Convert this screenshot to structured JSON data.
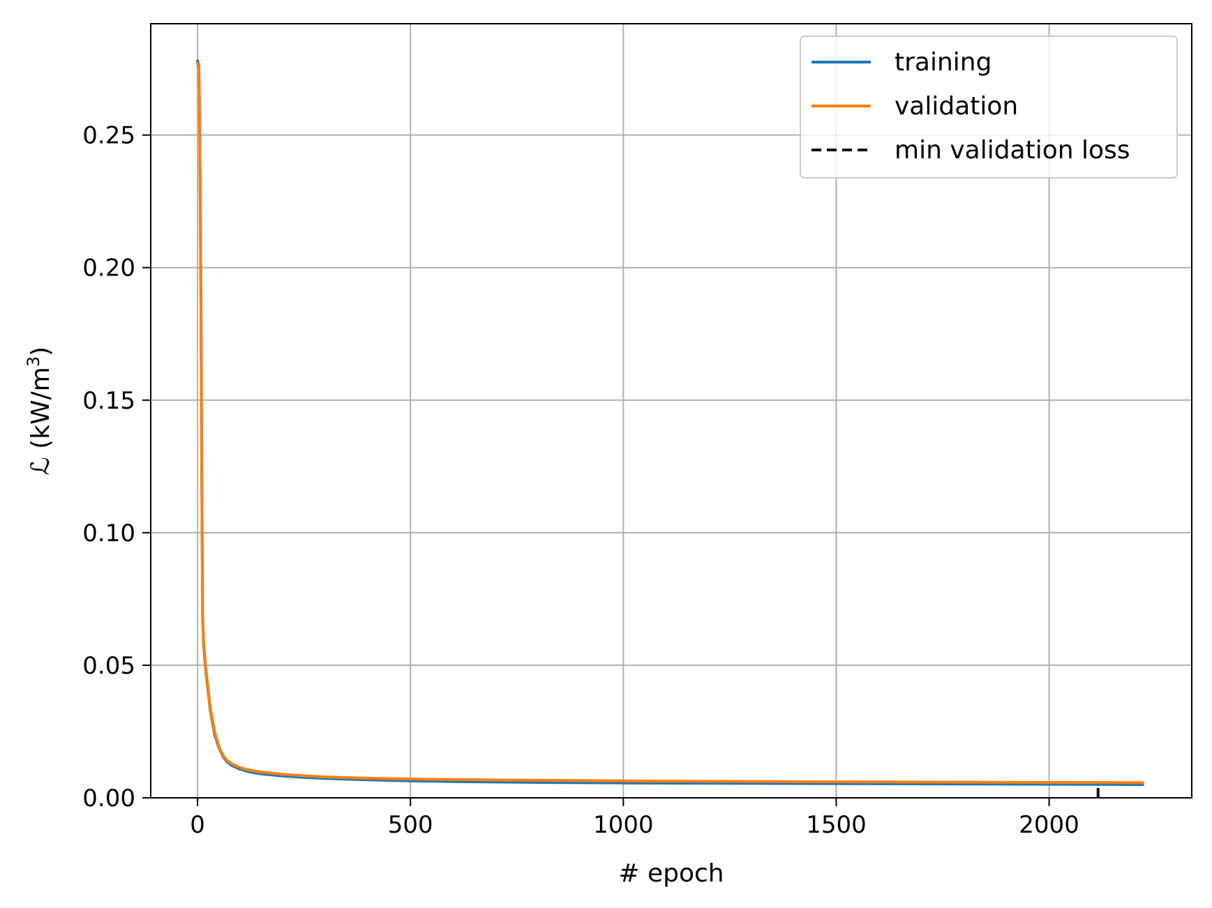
{
  "chart_data": {
    "type": "line",
    "xlabel": "# epoch",
    "ylabel_main": "ℒ (kW/m",
    "ylabel_sup": "3",
    "ylabel_close": ")",
    "xlim": [
      -110,
      2335
    ],
    "ylim": [
      0.0,
      0.292
    ],
    "xticks": [
      0,
      500,
      1000,
      1500,
      2000
    ],
    "yticks": [
      0.0,
      0.05,
      0.1,
      0.15,
      0.2,
      0.25
    ],
    "xtick_labels": [
      "0",
      "500",
      "1000",
      "1500",
      "2000"
    ],
    "ytick_labels": [
      "0.00",
      "0.05",
      "0.10",
      "0.15",
      "0.20",
      "0.25"
    ],
    "grid": true,
    "legend_position": "top-right",
    "series": [
      {
        "name": "training",
        "color": "#1f77b4",
        "x": [
          0,
          3,
          5,
          8,
          10,
          12,
          14,
          16,
          20,
          25,
          30,
          40,
          50,
          60,
          70,
          80,
          100,
          120,
          150,
          200,
          250,
          300,
          400,
          500,
          600,
          800,
          1000,
          1200,
          1400,
          1600,
          1800,
          2000,
          2220
        ],
        "y": [
          0.278,
          0.276,
          0.255,
          0.185,
          0.12,
          0.068,
          0.058,
          0.054,
          0.047,
          0.04,
          0.033,
          0.024,
          0.019,
          0.0155,
          0.0135,
          0.0122,
          0.0108,
          0.0098,
          0.009,
          0.0082,
          0.0077,
          0.0073,
          0.0068,
          0.0064,
          0.0061,
          0.0058,
          0.0056,
          0.0055,
          0.0054,
          0.0053,
          0.0052,
          0.0051,
          0.005
        ]
      },
      {
        "name": "validation",
        "color": "#ff7f0e",
        "x": [
          0,
          3,
          5,
          8,
          10,
          12,
          14,
          16,
          20,
          25,
          30,
          40,
          50,
          60,
          70,
          80,
          100,
          120,
          150,
          200,
          250,
          300,
          400,
          500,
          600,
          800,
          1000,
          1200,
          1400,
          1600,
          1800,
          2000,
          2220
        ],
        "y": [
          0.277,
          0.275,
          0.254,
          0.186,
          0.121,
          0.069,
          0.059,
          0.055,
          0.048,
          0.041,
          0.034,
          0.025,
          0.0195,
          0.016,
          0.014,
          0.0128,
          0.0114,
          0.0105,
          0.0097,
          0.0089,
          0.0083,
          0.0079,
          0.0074,
          0.0071,
          0.0069,
          0.0066,
          0.0064,
          0.0062,
          0.0061,
          0.006,
          0.0059,
          0.0058,
          0.0057
        ]
      }
    ],
    "min_validation_loss": {
      "name": "min validation loss",
      "color": "#000000",
      "epoch": 2115,
      "ymin": 0.0,
      "ymax": 0.0055
    }
  }
}
